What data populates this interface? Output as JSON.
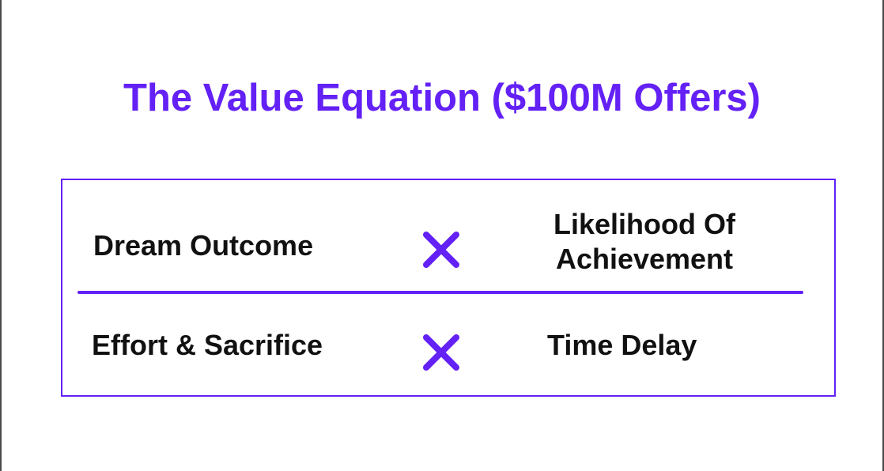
{
  "title": "The Value Equation ($100M Offers)",
  "numerator": {
    "left": "Dream Outcome",
    "operator_icon": "multiply-icon",
    "right_line1": "Likelihood Of",
    "right_line2": "Achievement"
  },
  "denominator": {
    "left": "Effort & Sacrifice",
    "operator_icon": "multiply-icon",
    "right": "Time Delay"
  },
  "colors": {
    "accent": "#6321f5",
    "text": "#111111",
    "background": "#ffffff"
  }
}
